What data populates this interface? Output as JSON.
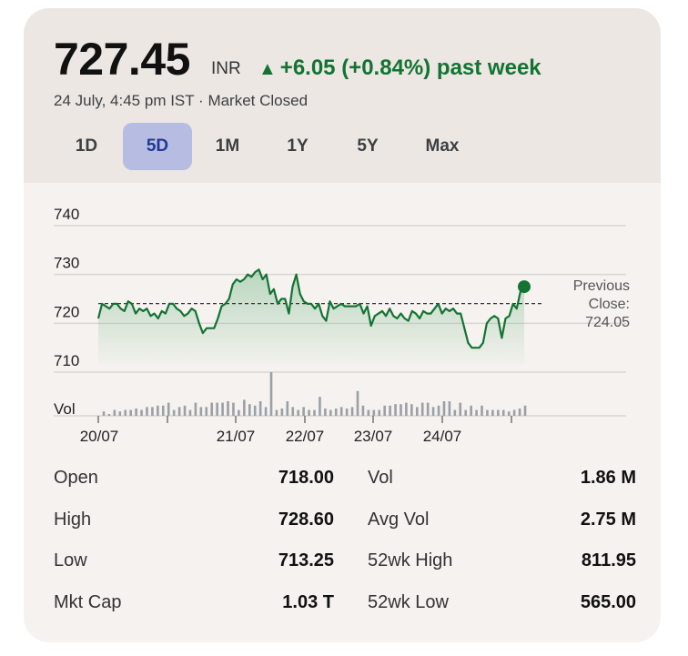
{
  "quote": {
    "price": "727.45",
    "currency": "INR",
    "change_arrow": "▲",
    "change_text": "+6.05 (+0.84%) past week",
    "subline": "24 July, 4:45 pm IST · Market Closed",
    "change_color": "#137333"
  },
  "tabs": [
    {
      "label": "1D",
      "active": false
    },
    {
      "label": "5D",
      "active": true
    },
    {
      "label": "1M",
      "active": false
    },
    {
      "label": "1Y",
      "active": false
    },
    {
      "label": "5Y",
      "active": false
    },
    {
      "label": "Max",
      "active": false
    }
  ],
  "chart_data": {
    "type": "line",
    "y_ticks": [
      "740",
      "730",
      "720",
      "710"
    ],
    "ylim": [
      705,
      743
    ],
    "x_tick_labels": [
      "20/07",
      "21/07",
      "22/07",
      "23/07",
      "24/07"
    ],
    "previous_close": 724.05,
    "previous_close_label": "Previous Close: 724.05",
    "volume_label": "Vol",
    "line_color": "#137333",
    "series_price": [
      721,
      724,
      723.5,
      723,
      724,
      724,
      723,
      722.5,
      724.5,
      724,
      722,
      723,
      722.5,
      723,
      721.5,
      722,
      721,
      722.5,
      722,
      724,
      724,
      723,
      722.5,
      721.5,
      722,
      723,
      722.5,
      720,
      718,
      719,
      719,
      719,
      721,
      723.5,
      724,
      725,
      728,
      729,
      728.5,
      729,
      730,
      729.5,
      730.5,
      731,
      729,
      730,
      726,
      727,
      724,
      725,
      725,
      722,
      727.5,
      730,
      726,
      724.5,
      724,
      724,
      723,
      724,
      721.5,
      720.5,
      724.5,
      723,
      723.5,
      724,
      723.5,
      723.5,
      723.5,
      723.5,
      724,
      722,
      723.5,
      719.5,
      721.5,
      722,
      722.5,
      721.5,
      723,
      721.5,
      721,
      722,
      721,
      720.5,
      722.5,
      722,
      721,
      722.5,
      722,
      722,
      723,
      724,
      722,
      723,
      722.5,
      723,
      722,
      722,
      719,
      716,
      715,
      715,
      715,
      716,
      720,
      721,
      721.5,
      721,
      717,
      721,
      721.5,
      724,
      723,
      726.5,
      727.5
    ],
    "series_volume": [
      0.15,
      0.05,
      0.2,
      0.15,
      0.2,
      0.2,
      0.25,
      0.2,
      0.3,
      0.3,
      0.35,
      0.35,
      0.45,
      0.2,
      0.3,
      0.35,
      0.2,
      0.45,
      0.3,
      0.3,
      0.45,
      0.45,
      0.45,
      0.5,
      0.45,
      0.2,
      0.55,
      0.4,
      0.35,
      0.5,
      0.3,
      1.5,
      0.2,
      0.25,
      0.5,
      0.3,
      0.2,
      0.3,
      0.2,
      0.2,
      0.65,
      0.25,
      0.2,
      0.25,
      0.3,
      0.25,
      0.3,
      0.85,
      0.35,
      0.2,
      0.2,
      0.2,
      0.35,
      0.35,
      0.4,
      0.4,
      0.45,
      0.4,
      0.3,
      0.45,
      0.45,
      0.3,
      0.35,
      0.5,
      0.5,
      0.2,
      0.45,
      0.2,
      0.35,
      0.2,
      0.35,
      0.2,
      0.2,
      0.2,
      0.2,
      0.15,
      0.2,
      0.25,
      0.35
    ],
    "last_point": 727.5
  },
  "stats": {
    "left": [
      {
        "label": "Open",
        "value": "718.00"
      },
      {
        "label": "High",
        "value": "728.60"
      },
      {
        "label": "Low",
        "value": "713.25"
      },
      {
        "label": "Mkt Cap",
        "value": "1.03 T"
      }
    ],
    "right": [
      {
        "label": "Vol",
        "value": "1.86 M"
      },
      {
        "label": "Avg Vol",
        "value": "2.75 M"
      },
      {
        "label": "52wk High",
        "value": "811.95"
      },
      {
        "label": "52wk Low",
        "value": "565.00"
      }
    ]
  }
}
